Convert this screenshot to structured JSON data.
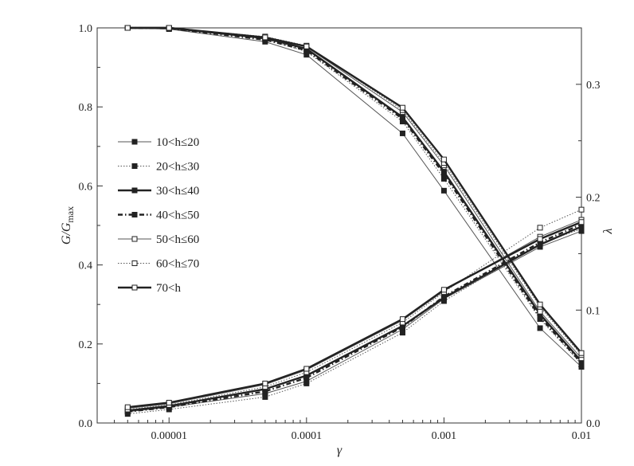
{
  "chart_data": {
    "type": "line",
    "x": [
      5e-06,
      1e-05,
      5e-05,
      0.0001,
      0.0005,
      0.001,
      0.005,
      0.01
    ],
    "x_scale": "log",
    "xlim": [
      3e-06,
      0.01
    ],
    "x_ticks": [
      1e-05,
      0.0001,
      0.001,
      0.01
    ],
    "x_tick_labels": [
      "0.00001",
      "0.0001",
      "0.001",
      "0.01"
    ],
    "xlabel": "γ",
    "ylabel_left": {
      "main": "G/G",
      "sub": "max"
    },
    "ylim_left": [
      0,
      1.0
    ],
    "y_ticks_left": [
      "0.0",
      "0.2",
      "0.4",
      "0.6",
      "0.8",
      "1.0"
    ],
    "ylabel_right": "λ",
    "ylim_right": [
      0,
      0.35
    ],
    "y_ticks_right": [
      "0.0",
      "0.1",
      "0.2",
      "0.3"
    ],
    "grid": false,
    "legend_position": "left-middle",
    "series": [
      {
        "name": "10<h≤20",
        "line": "solid",
        "weight": "thin",
        "marker": "filled-square",
        "g_values": [
          1.0,
          0.997,
          0.965,
          0.932,
          0.733,
          0.588,
          0.24,
          0.142
        ],
        "lambda_values": [
          0.01,
          0.014,
          0.026,
          0.037,
          0.083,
          0.11,
          0.156,
          0.17
        ]
      },
      {
        "name": "20<h≤30",
        "line": "dotted",
        "weight": "thin",
        "marker": "filled-square",
        "g_values": [
          1.0,
          0.998,
          0.972,
          0.94,
          0.763,
          0.618,
          0.263,
          0.149
        ],
        "lambda_values": [
          0.008,
          0.012,
          0.023,
          0.035,
          0.08,
          0.108,
          0.159,
          0.172
        ]
      },
      {
        "name": "30<h≤40",
        "line": "solid",
        "weight": "thick",
        "marker": "filled-square",
        "g_values": [
          1.0,
          1.0,
          0.974,
          0.947,
          0.774,
          0.636,
          0.275,
          0.156
        ],
        "lambda_values": [
          0.011,
          0.015,
          0.03,
          0.042,
          0.086,
          0.111,
          0.158,
          0.174
        ]
      },
      {
        "name": "40<h≤50",
        "line": "dashdot",
        "weight": "thick",
        "marker": "filled-square",
        "g_values": [
          1.0,
          0.999,
          0.97,
          0.943,
          0.77,
          0.63,
          0.268,
          0.152
        ],
        "lambda_values": [
          0.01,
          0.014,
          0.028,
          0.04,
          0.085,
          0.112,
          0.16,
          0.176
        ]
      },
      {
        "name": "50<h≤60",
        "line": "solid",
        "weight": "thin",
        "marker": "open-square",
        "g_values": [
          1.0,
          0.999,
          0.976,
          0.952,
          0.787,
          0.652,
          0.282,
          0.164
        ],
        "lambda_values": [
          0.013,
          0.017,
          0.034,
          0.047,
          0.091,
          0.117,
          0.165,
          0.18
        ]
      },
      {
        "name": "60<h≤70",
        "line": "dotted",
        "weight": "thin",
        "marker": "open-square",
        "g_values": [
          1.0,
          1.0,
          0.978,
          0.955,
          0.792,
          0.658,
          0.294,
          0.172
        ],
        "lambda_values": [
          0.012,
          0.016,
          0.032,
          0.045,
          0.089,
          0.116,
          0.173,
          0.189
        ]
      },
      {
        "name": "70<h",
        "line": "solid",
        "weight": "thick",
        "marker": "open-square",
        "g_values": [
          1.0,
          1.0,
          0.976,
          0.953,
          0.798,
          0.667,
          0.3,
          0.177
        ],
        "lambda_values": [
          0.014,
          0.018,
          0.035,
          0.048,
          0.092,
          0.118,
          0.163,
          0.178
        ]
      }
    ]
  }
}
